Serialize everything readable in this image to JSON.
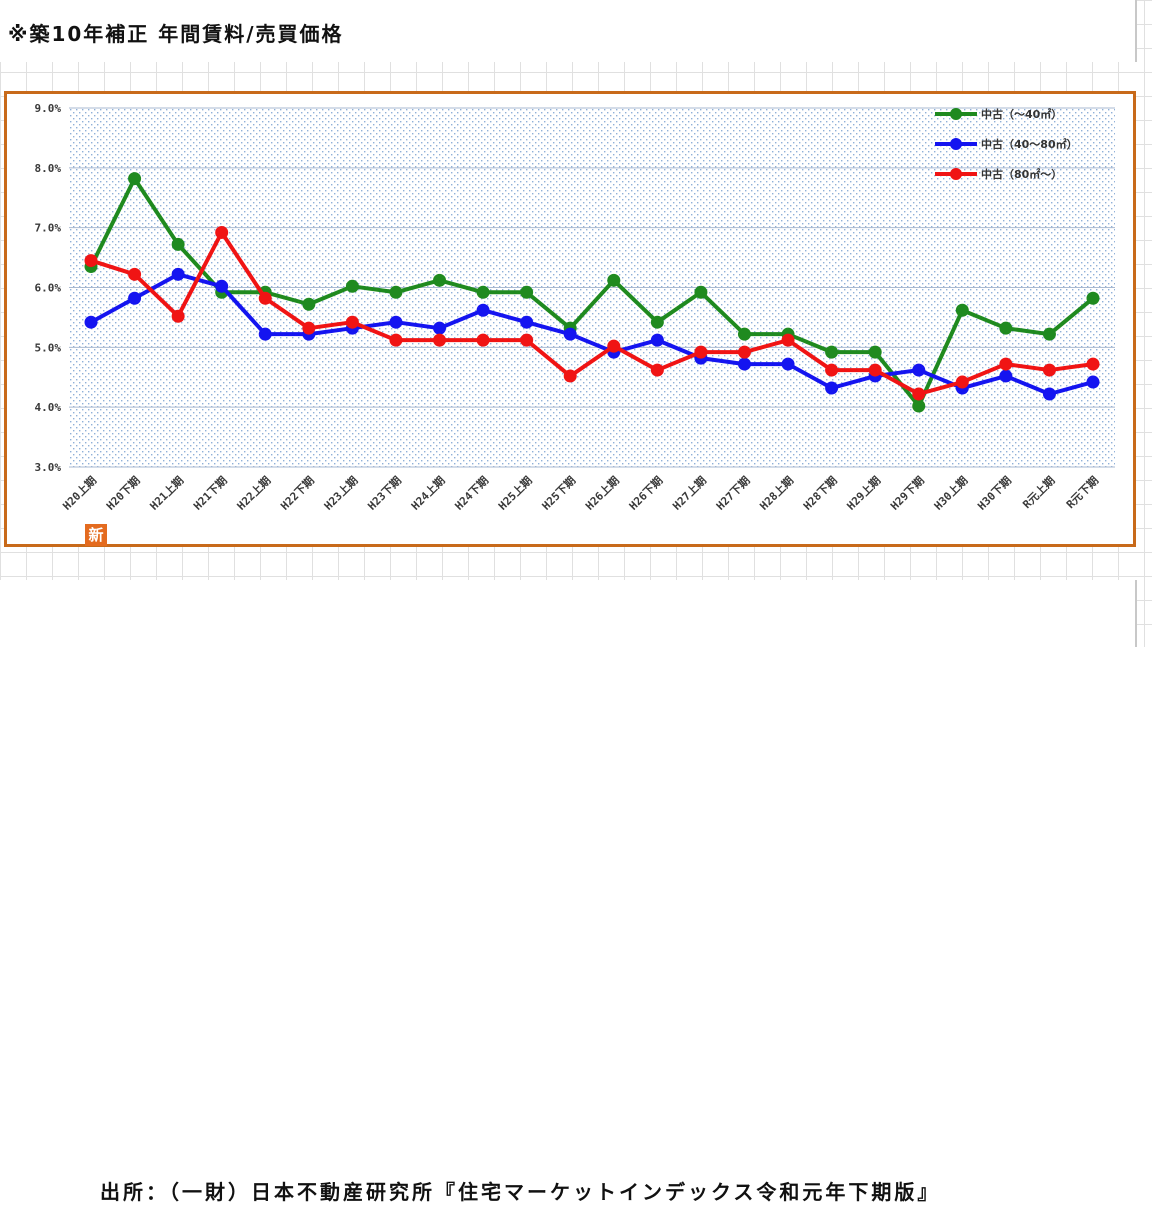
{
  "title": "※築10年補正 年間賃料/売買価格",
  "source": "出所：（一財）日本不動産研究所『住宅マーケットインデックス令和元年下期版』",
  "badge": "新",
  "chart_data": {
    "type": "line",
    "categories": [
      "H20上期",
      "H20下期",
      "H21上期",
      "H21下期",
      "H22上期",
      "H22下期",
      "H23上期",
      "H23下期",
      "H24上期",
      "H24下期",
      "H25上期",
      "H25下期",
      "H26上期",
      "H26下期",
      "H27上期",
      "H27下期",
      "H28上期",
      "H28下期",
      "H29上期",
      "H29下期",
      "H30上期",
      "H30下期",
      "R元上期",
      "R元下期"
    ],
    "ylim": [
      3.0,
      9.0
    ],
    "yticks": [
      "3.0%",
      "4.0%",
      "5.0%",
      "6.0%",
      "7.0%",
      "8.0%",
      "9.0%"
    ],
    "grid": true,
    "legend_position": "top-right",
    "series": [
      {
        "name": "中古（～40㎡）",
        "color": "#1f8a1f",
        "values": [
          6.35,
          7.82,
          6.72,
          5.92,
          5.92,
          5.72,
          6.02,
          5.92,
          6.12,
          5.92,
          5.92,
          5.32,
          6.12,
          5.42,
          5.92,
          5.22,
          5.22,
          4.92,
          4.92,
          4.02,
          5.62,
          5.32,
          5.22,
          5.82
        ]
      },
      {
        "name": "中古（40～80㎡）",
        "color": "#1414f0",
        "values": [
          5.42,
          5.82,
          6.22,
          6.02,
          5.22,
          5.22,
          5.32,
          5.42,
          5.32,
          5.62,
          5.42,
          5.22,
          4.92,
          5.12,
          4.82,
          4.72,
          4.72,
          4.32,
          4.52,
          4.62,
          4.32,
          4.52,
          4.22,
          4.42
        ]
      },
      {
        "name": "中古（80㎡～）",
        "color": "#f01414",
        "values": [
          6.45,
          6.22,
          5.52,
          6.92,
          5.82,
          5.32,
          5.42,
          5.12,
          5.12,
          5.12,
          5.12,
          4.52,
          5.02,
          4.62,
          4.92,
          4.92,
          5.12,
          4.62,
          4.62,
          4.22,
          4.42,
          4.72,
          4.62,
          4.72
        ]
      }
    ]
  }
}
